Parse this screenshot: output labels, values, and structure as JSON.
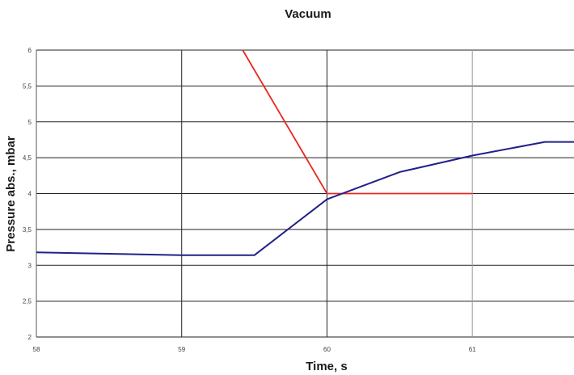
{
  "chart_data": {
    "type": "line",
    "title": "Vacuum",
    "xlabel": "Time, s",
    "ylabel": "Pressure abs., mbar",
    "xlim": [
      58,
      61.7
    ],
    "ylim": [
      2,
      6
    ],
    "x_ticks": [
      58,
      59,
      60,
      61
    ],
    "x_tick_labels": [
      "58",
      "59",
      "60",
      "61"
    ],
    "y_ticks": [
      2,
      2.5,
      3,
      3.5,
      4,
      4.5,
      5,
      5.5,
      6
    ],
    "y_tick_labels": [
      "2",
      "2,5",
      "3",
      "3,5",
      "4",
      "4,5",
      "5",
      "5,5",
      "6"
    ],
    "x_gridlines": [
      59,
      60,
      61
    ],
    "grid": true,
    "legend": false,
    "series": [
      {
        "color": "#e8271f",
        "x": [
          59.42,
          60.0,
          61.0
        ],
        "y": [
          6.0,
          4.0,
          4.0
        ]
      },
      {
        "color": "#20208a",
        "x": [
          58.0,
          58.5,
          59.0,
          59.5,
          60.0,
          60.5,
          61.0,
          61.5,
          61.7
        ],
        "y": [
          3.18,
          3.16,
          3.14,
          3.14,
          3.92,
          4.3,
          4.53,
          4.72,
          4.72
        ]
      }
    ]
  }
}
